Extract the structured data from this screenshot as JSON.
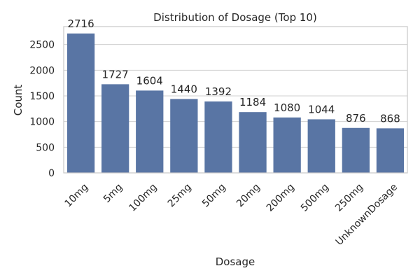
{
  "chart_data": {
    "type": "bar",
    "title": "Distribution of Dosage (Top 10)",
    "xlabel": "Dosage",
    "ylabel": "Count",
    "categories": [
      "10mg",
      "5mg",
      "100mg",
      "25mg",
      "50mg",
      "20mg",
      "200mg",
      "500mg",
      "250mg",
      "UnknownDosage"
    ],
    "values": [
      2716,
      1727,
      1604,
      1440,
      1392,
      1184,
      1080,
      1044,
      876,
      868
    ],
    "ylim": [
      0,
      2850
    ],
    "yticks": [
      0,
      500,
      1000,
      1500,
      2000,
      2500
    ],
    "grid": true,
    "bar_color": "#5975a4",
    "show_data_labels": true
  }
}
